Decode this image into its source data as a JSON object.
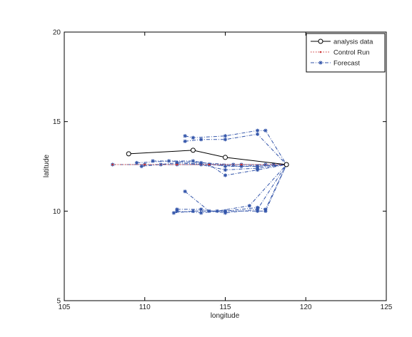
{
  "chart_data": {
    "type": "line",
    "title": "",
    "xlabel": "longitude",
    "ylabel": "latitude",
    "xlim": [
      105,
      125
    ],
    "ylim": [
      5,
      20
    ],
    "xticks": [
      105,
      110,
      115,
      120,
      125
    ],
    "yticks": [
      5,
      10,
      15,
      20
    ],
    "grid": false,
    "legend": "top-right",
    "series": [
      {
        "name": "analysis data",
        "color": "#000000",
        "style": "solid",
        "marker": "circle",
        "tracks": [
          [
            [
              109.0,
              13.2
            ],
            [
              113.0,
              13.4
            ],
            [
              115.0,
              13.0
            ],
            [
              118.8,
              12.6
            ]
          ]
        ]
      },
      {
        "name": "Control Run",
        "color": "#cc3333",
        "style": "dotted",
        "marker": "dot",
        "tracks": [
          [
            [
              108.0,
              12.6
            ],
            [
              110.0,
              12.6
            ],
            [
              112.0,
              12.6
            ],
            [
              114.0,
              12.6
            ],
            [
              116.0,
              12.6
            ],
            [
              118.8,
              12.6
            ]
          ]
        ]
      },
      {
        "name": "Forecast",
        "color": "#3355aa",
        "style": "dashdot",
        "marker": "star",
        "tracks": [
          [
            [
              108.0,
              12.6
            ],
            [
              110.0,
              12.6
            ],
            [
              112.0,
              12.6
            ],
            [
              114.0,
              12.6
            ],
            [
              116.0,
              12.6
            ],
            [
              118.8,
              12.6
            ]
          ],
          [
            [
              109.5,
              12.7
            ],
            [
              111.5,
              12.8
            ],
            [
              113.5,
              12.7
            ],
            [
              115.5,
              12.6
            ],
            [
              117.5,
              12.6
            ],
            [
              118.8,
              12.6
            ]
          ],
          [
            [
              109.8,
              12.5
            ],
            [
              112.0,
              12.7
            ],
            [
              114.0,
              12.6
            ],
            [
              116.0,
              12.5
            ],
            [
              118.0,
              12.6
            ],
            [
              118.8,
              12.6
            ]
          ],
          [
            [
              110.5,
              12.8
            ],
            [
              113.0,
              12.8
            ],
            [
              115.0,
              12.5
            ],
            [
              117.0,
              12.5
            ],
            [
              118.8,
              12.6
            ]
          ],
          [
            [
              111.0,
              12.6
            ],
            [
              113.5,
              12.6
            ],
            [
              115.0,
              12.3
            ],
            [
              117.0,
              12.4
            ],
            [
              118.8,
              12.6
            ]
          ],
          [
            [
              112.0,
              12.7
            ],
            [
              114.0,
              12.6
            ],
            [
              115.0,
              12.0
            ],
            [
              117.0,
              12.3
            ],
            [
              118.8,
              12.6
            ]
          ],
          [
            [
              112.5,
              14.2
            ],
            [
              113.0,
              14.1
            ],
            [
              115.0,
              14.2
            ],
            [
              117.0,
              14.5
            ],
            [
              117.5,
              14.5
            ],
            [
              118.8,
              12.6
            ]
          ],
          [
            [
              112.5,
              13.9
            ],
            [
              113.5,
              14.0
            ],
            [
              115.0,
              14.0
            ],
            [
              117.0,
              14.3
            ],
            [
              118.8,
              12.6
            ]
          ],
          [
            [
              112.5,
              11.1
            ],
            [
              114.0,
              10.0
            ],
            [
              115.0,
              10.0
            ],
            [
              117.0,
              10.2
            ],
            [
              117.5,
              10.1
            ],
            [
              118.8,
              12.6
            ]
          ],
          [
            [
              112.0,
              10.1
            ],
            [
              113.5,
              10.1
            ],
            [
              115.0,
              9.9
            ],
            [
              117.0,
              10.1
            ],
            [
              118.8,
              12.6
            ]
          ],
          [
            [
              111.8,
              9.9
            ],
            [
              113.0,
              10.0
            ],
            [
              115.0,
              10.0
            ],
            [
              117.0,
              10.0
            ],
            [
              117.5,
              10.0
            ],
            [
              118.8,
              12.6
            ]
          ],
          [
            [
              112.0,
              10.0
            ],
            [
              113.5,
              9.9
            ],
            [
              114.5,
              10.0
            ],
            [
              116.5,
              10.3
            ],
            [
              118.8,
              12.6
            ]
          ]
        ]
      }
    ]
  }
}
